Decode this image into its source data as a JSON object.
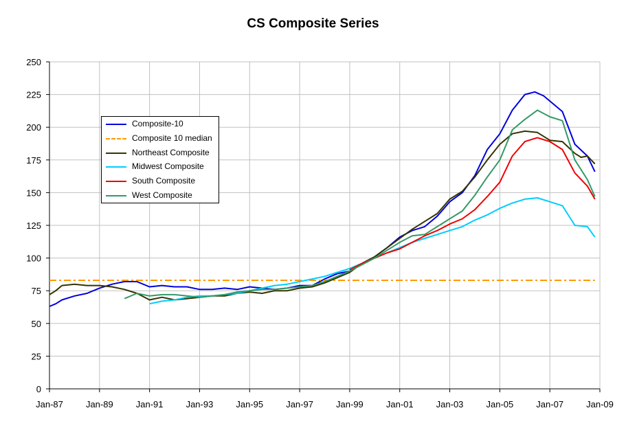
{
  "chart_data": {
    "type": "line",
    "title": "CS Composite Series",
    "xlabel": "",
    "ylabel": "",
    "ylim": [
      0,
      250
    ],
    "yticks": [
      0,
      25,
      50,
      75,
      100,
      125,
      150,
      175,
      200,
      225,
      250
    ],
    "xlim": [
      1987.0,
      2009.0
    ],
    "xtick_labels": [
      "Jan-87",
      "Jan-89",
      "Jan-91",
      "Jan-93",
      "Jan-95",
      "Jan-97",
      "Jan-99",
      "Jan-01",
      "Jan-03",
      "Jan-05",
      "Jan-07",
      "Jan-09"
    ],
    "grid": true,
    "legend_position": "upper-left",
    "series": [
      {
        "name": "Composite-10",
        "color": "#0000dd",
        "style": "solid",
        "x": [
          1987.0,
          1987.25,
          1987.5,
          1988.0,
          1988.5,
          1989.0,
          1989.5,
          1990.0,
          1990.5,
          1991.0,
          1991.5,
          1992.0,
          1992.5,
          1993.0,
          1993.5,
          1994.0,
          1994.5,
          1995.0,
          1995.5,
          1996.0,
          1996.5,
          1997.0,
          1997.5,
          1998.0,
          1998.5,
          1999.0,
          1999.5,
          2000.0,
          2000.5,
          2001.0,
          2001.5,
          2002.0,
          2002.5,
          2003.0,
          2003.5,
          2004.0,
          2004.5,
          2005.0,
          2005.5,
          2006.0,
          2006.4,
          2006.75,
          2007.0,
          2007.5,
          2008.0,
          2008.5,
          2008.8
        ],
        "values": [
          63,
          65,
          68,
          71,
          73,
          77,
          80,
          82,
          82,
          78,
          79,
          78,
          78,
          76,
          76,
          77,
          76,
          78,
          77,
          76,
          77,
          79,
          79,
          84,
          88,
          90,
          96,
          101,
          108,
          116,
          121,
          124,
          132,
          143,
          150,
          163,
          183,
          195,
          213,
          225,
          227,
          224,
          220,
          212,
          187,
          178,
          166
        ]
      },
      {
        "name": "Composite 10 median",
        "color": "#ff9900",
        "style": "dashdot",
        "x": [
          1987.0,
          2008.8
        ],
        "values": [
          83,
          83
        ]
      },
      {
        "name": "Northeast Composite",
        "color": "#333300",
        "style": "solid",
        "x": [
          1987.0,
          1987.25,
          1987.5,
          1988.0,
          1988.5,
          1989.0,
          1989.5,
          1990.0,
          1990.5,
          1991.0,
          1991.5,
          1992.0,
          1992.5,
          1993.0,
          1993.5,
          1994.0,
          1994.5,
          1995.0,
          1995.5,
          1996.0,
          1996.5,
          1997.0,
          1997.5,
          1998.0,
          1998.5,
          1999.0,
          1999.5,
          2000.0,
          2000.5,
          2001.0,
          2001.5,
          2002.0,
          2002.5,
          2003.0,
          2003.5,
          2004.0,
          2004.5,
          2005.0,
          2005.5,
          2006.0,
          2006.5,
          2007.0,
          2007.5,
          2008.0,
          2008.25,
          2008.5,
          2008.8
        ],
        "values": [
          72,
          75,
          79,
          80,
          79,
          79,
          78,
          76,
          73,
          68,
          70,
          68,
          69,
          70,
          71,
          71,
          73,
          74,
          73,
          75,
          75,
          77,
          78,
          81,
          85,
          89,
          96,
          101,
          108,
          115,
          122,
          128,
          134,
          145,
          151,
          162,
          175,
          187,
          195,
          197,
          196,
          190,
          189,
          180,
          177,
          178,
          172
        ]
      },
      {
        "name": "Midwest Composite",
        "color": "#00ccff",
        "style": "solid",
        "x": [
          1991.0,
          1991.5,
          1992.0,
          1992.5,
          1993.0,
          1993.5,
          1994.0,
          1994.5,
          1995.0,
          1995.5,
          1996.0,
          1996.5,
          1997.0,
          1997.5,
          1998.0,
          1998.5,
          1999.0,
          1999.5,
          2000.0,
          2000.5,
          2001.0,
          2001.5,
          2002.0,
          2002.5,
          2003.0,
          2003.5,
          2004.0,
          2004.5,
          2005.0,
          2005.5,
          2006.0,
          2006.5,
          2007.0,
          2007.5,
          2008.0,
          2008.5,
          2008.8
        ],
        "values": [
          65,
          67,
          68,
          70,
          71,
          71,
          72,
          73,
          75,
          77,
          79,
          80,
          82,
          84,
          86,
          89,
          92,
          96,
          100,
          104,
          108,
          112,
          115,
          118,
          121,
          124,
          129,
          133,
          138,
          142,
          145,
          146,
          143,
          140,
          125,
          124,
          116
        ]
      },
      {
        "name": "South Composite",
        "color": "#ee0000",
        "style": "solid",
        "x": [
          1999.0,
          1999.5,
          2000.0,
          2000.5,
          2001.0,
          2001.5,
          2002.0,
          2002.5,
          2003.0,
          2003.5,
          2004.0,
          2004.5,
          2005.0,
          2005.5,
          2006.0,
          2006.5,
          2007.0,
          2007.5,
          2008.0,
          2008.5,
          2008.8
        ],
        "values": [
          91,
          96,
          100,
          104,
          107,
          112,
          117,
          121,
          126,
          130,
          137,
          147,
          158,
          178,
          189,
          192,
          189,
          183,
          165,
          155,
          145
        ]
      },
      {
        "name": "West Composite",
        "color": "#339966",
        "style": "solid",
        "x": [
          1990.0,
          1990.5,
          1991.0,
          1991.5,
          1992.0,
          1992.5,
          1993.0,
          1993.5,
          1994.0,
          1994.5,
          1995.0,
          1995.5,
          1996.0,
          1996.5,
          1997.0,
          1997.5,
          1998.0,
          1998.5,
          1999.0,
          1999.5,
          2000.0,
          2000.5,
          2001.0,
          2001.5,
          2002.0,
          2002.5,
          2003.0,
          2003.5,
          2004.0,
          2004.5,
          2005.0,
          2005.5,
          2006.0,
          2006.5,
          2007.0,
          2007.5,
          2008.0,
          2008.5,
          2008.8
        ],
        "values": [
          69,
          73,
          71,
          72,
          72,
          71,
          70,
          71,
          72,
          74,
          75,
          76,
          76,
          77,
          78,
          79,
          82,
          86,
          90,
          95,
          100,
          106,
          112,
          117,
          118,
          124,
          130,
          136,
          148,
          162,
          175,
          198,
          206,
          213,
          208,
          205,
          175,
          160,
          147
        ]
      }
    ]
  }
}
